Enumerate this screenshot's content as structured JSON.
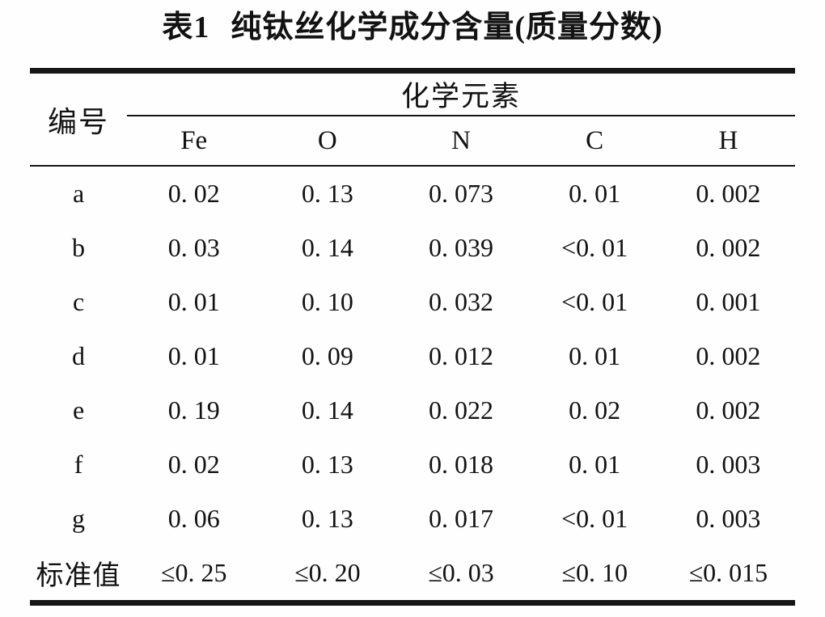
{
  "title": {
    "number": "表1",
    "text": "纯钛丝化学成分含量(质量分数)"
  },
  "table": {
    "id_header": "编号",
    "group_header": "化学元素",
    "columns": [
      "Fe",
      "O",
      "N",
      "C",
      "H"
    ],
    "rows": [
      {
        "label": "a",
        "values": [
          "0. 02",
          "0. 13",
          "0. 073",
          "0. 01",
          "0. 002"
        ]
      },
      {
        "label": "b",
        "values": [
          "0. 03",
          "0. 14",
          "0. 039",
          "<0. 01",
          "0. 002"
        ]
      },
      {
        "label": "c",
        "values": [
          "0. 01",
          "0. 10",
          "0. 032",
          "<0. 01",
          "0. 001"
        ]
      },
      {
        "label": "d",
        "values": [
          "0. 01",
          "0. 09",
          "0. 012",
          "0. 01",
          "0. 002"
        ]
      },
      {
        "label": "e",
        "values": [
          "0. 19",
          "0. 14",
          "0. 022",
          "0. 02",
          "0. 002"
        ]
      },
      {
        "label": "f",
        "values": [
          "0. 02",
          "0. 13",
          "0. 018",
          "0. 01",
          "0. 003"
        ]
      },
      {
        "label": "g",
        "values": [
          "0. 06",
          "0. 13",
          "0. 017",
          "<0. 01",
          "0. 003"
        ]
      },
      {
        "label": "标准值",
        "values": [
          "≤0. 25",
          "≤0. 20",
          "≤0. 03",
          "≤0. 10",
          "≤0. 015"
        ]
      }
    ]
  },
  "colors": {
    "ink": "#151515",
    "background": "#fefefe"
  }
}
